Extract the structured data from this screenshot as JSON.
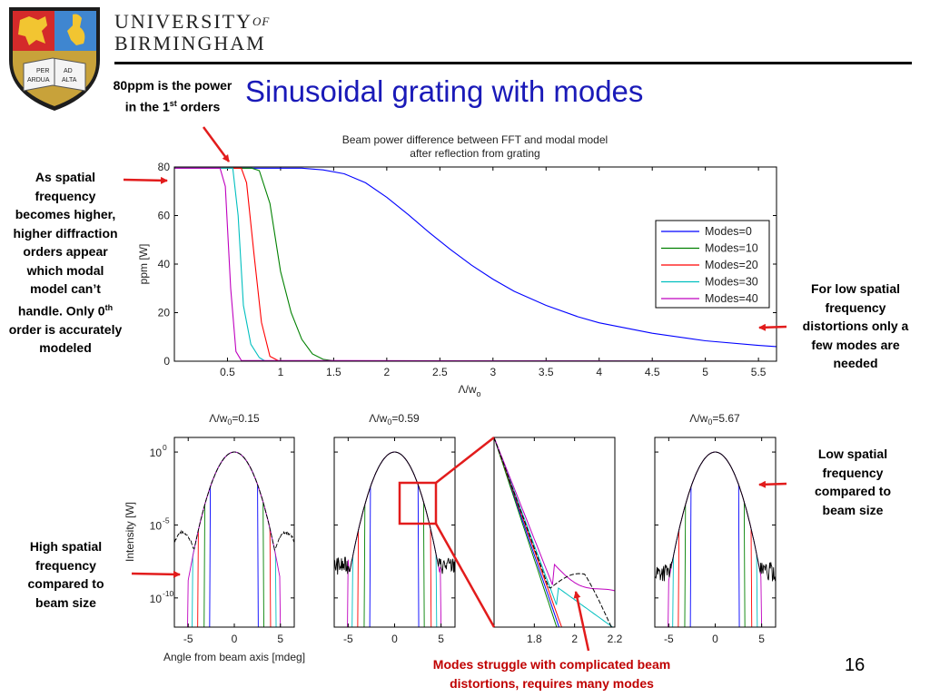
{
  "header": {
    "university_line1": "UNIVERSITY",
    "university_of": "OF",
    "university_line2": "BIRMINGHAM",
    "crest_book_text": [
      "PER",
      "AD",
      "ARDUA",
      "ALTA"
    ]
  },
  "slide": {
    "title": "Sinusoidal grating with modes",
    "page_number": "16"
  },
  "notes": {
    "ppm_before": "80ppm is the power in the 1",
    "ppm_sup": "st",
    "ppm_after": " orders",
    "spatial_before": "As spatial frequency becomes higher, higher diffraction orders appear which modal model can’t handle. Only 0",
    "spatial_sup": "th",
    "spatial_after": " order is accurately modeled",
    "low_freq": "For low spatial frequency distortions only a few modes are needed",
    "low_size": "Low spatial frequency compared to beam size",
    "high_size": "High spatial frequency compared to beam size",
    "struggle": "Modes struggle with complicated beam distortions, requires many modes"
  },
  "colors": {
    "title_blue": "#1a1ab8",
    "arrow_red": "#e21c1c",
    "struggle_red": "#c00000",
    "modes0": "#0000ff",
    "modes10": "#008000",
    "modes20": "#ff0000",
    "modes30": "#00bfbf",
    "modes40": "#bf00bf",
    "fft": "#000000"
  },
  "chart_data": [
    {
      "type": "line",
      "title_line1": "Beam power difference between FFT and modal model",
      "title_line2": "after reflection from grating",
      "xlabel": "Λ/w",
      "xlabel_sub": "o",
      "ylabel": "ppm [W]",
      "xlim": [
        0,
        5.67
      ],
      "ylim": [
        0,
        80
      ],
      "xticks": [
        "0.5",
        "1",
        "1.5",
        "2",
        "2.5",
        "3",
        "3.5",
        "4",
        "4.5",
        "5",
        "5.5"
      ],
      "yticks": [
        "0",
        "20",
        "40",
        "60",
        "80"
      ],
      "legend_position": "right",
      "series": [
        {
          "name": "Modes=0",
          "color": "#0000ff",
          "x": [
            0,
            1.2,
            1.4,
            1.6,
            1.8,
            2.0,
            2.2,
            2.4,
            2.6,
            2.8,
            3.0,
            3.2,
            3.5,
            3.8,
            4.0,
            4.5,
            5.0,
            5.5,
            5.67
          ],
          "y": [
            79.5,
            79.5,
            78.8,
            77.2,
            73.5,
            67.5,
            60.5,
            53,
            46,
            39.5,
            33.8,
            28.8,
            23,
            18.3,
            15.8,
            11.5,
            8.4,
            6.5,
            6
          ]
        },
        {
          "name": "Modes=10",
          "color": "#008000",
          "x": [
            0,
            0.73,
            0.8,
            0.9,
            1.0,
            1.1,
            1.2,
            1.3,
            1.4,
            1.5,
            5.67
          ],
          "y": [
            79.5,
            79.5,
            78.5,
            65,
            37,
            20,
            9,
            3,
            0.8,
            0.2,
            0
          ]
        },
        {
          "name": "Modes=20",
          "color": "#ff0000",
          "x": [
            0,
            0.63,
            0.68,
            0.75,
            0.82,
            0.9,
            0.98,
            5.67
          ],
          "y": [
            79.5,
            79.5,
            73.5,
            44,
            16,
            2,
            0.2,
            0
          ]
        },
        {
          "name": "Modes=30",
          "color": "#00bfbf",
          "x": [
            0,
            0.55,
            0.6,
            0.65,
            0.72,
            0.8,
            0.85,
            5.67
          ],
          "y": [
            79.5,
            79.5,
            60,
            23,
            7,
            1.5,
            0.2,
            0
          ]
        },
        {
          "name": "Modes=40",
          "color": "#bf00bf",
          "x": [
            0,
            0.43,
            0.48,
            0.53,
            0.58,
            0.63,
            5.67
          ],
          "y": [
            79.5,
            79.5,
            72,
            30,
            4,
            0.3,
            0
          ]
        }
      ]
    },
    {
      "type": "line",
      "title": "Λ/w",
      "title_sub": "0",
      "title_value": "=0.15",
      "xlabel": "Angle from beam axis [mdeg]",
      "ylabel": "Intensity [W]",
      "y_scale": "log",
      "xlim": [
        -6.5,
        6.5
      ],
      "ylim_exp": [
        -12,
        1
      ],
      "xticks": [
        "-5",
        "0",
        "5"
      ],
      "yticks": [
        "10",
        "10",
        "10"
      ],
      "ytick_exponents": [
        "0",
        "-5",
        "-10"
      ]
    },
    {
      "type": "line",
      "title": "Λ/w",
      "title_sub": "0",
      "title_value": "=0.59",
      "y_scale": "log",
      "xlim": [
        -6.5,
        6.5
      ],
      "xticks": [
        "-5",
        "0",
        "5"
      ]
    },
    {
      "type": "line",
      "y_scale": "log",
      "xlim": [
        1.6,
        2.2
      ],
      "xticks": [
        "1.8",
        "2",
        "2.2"
      ]
    },
    {
      "type": "line",
      "title": "Λ/w",
      "title_sub": "0",
      "title_value": "=5.67",
      "y_scale": "log",
      "xlim": [
        -6.5,
        6.5
      ],
      "xticks": [
        "-5",
        "0",
        "5"
      ]
    }
  ]
}
